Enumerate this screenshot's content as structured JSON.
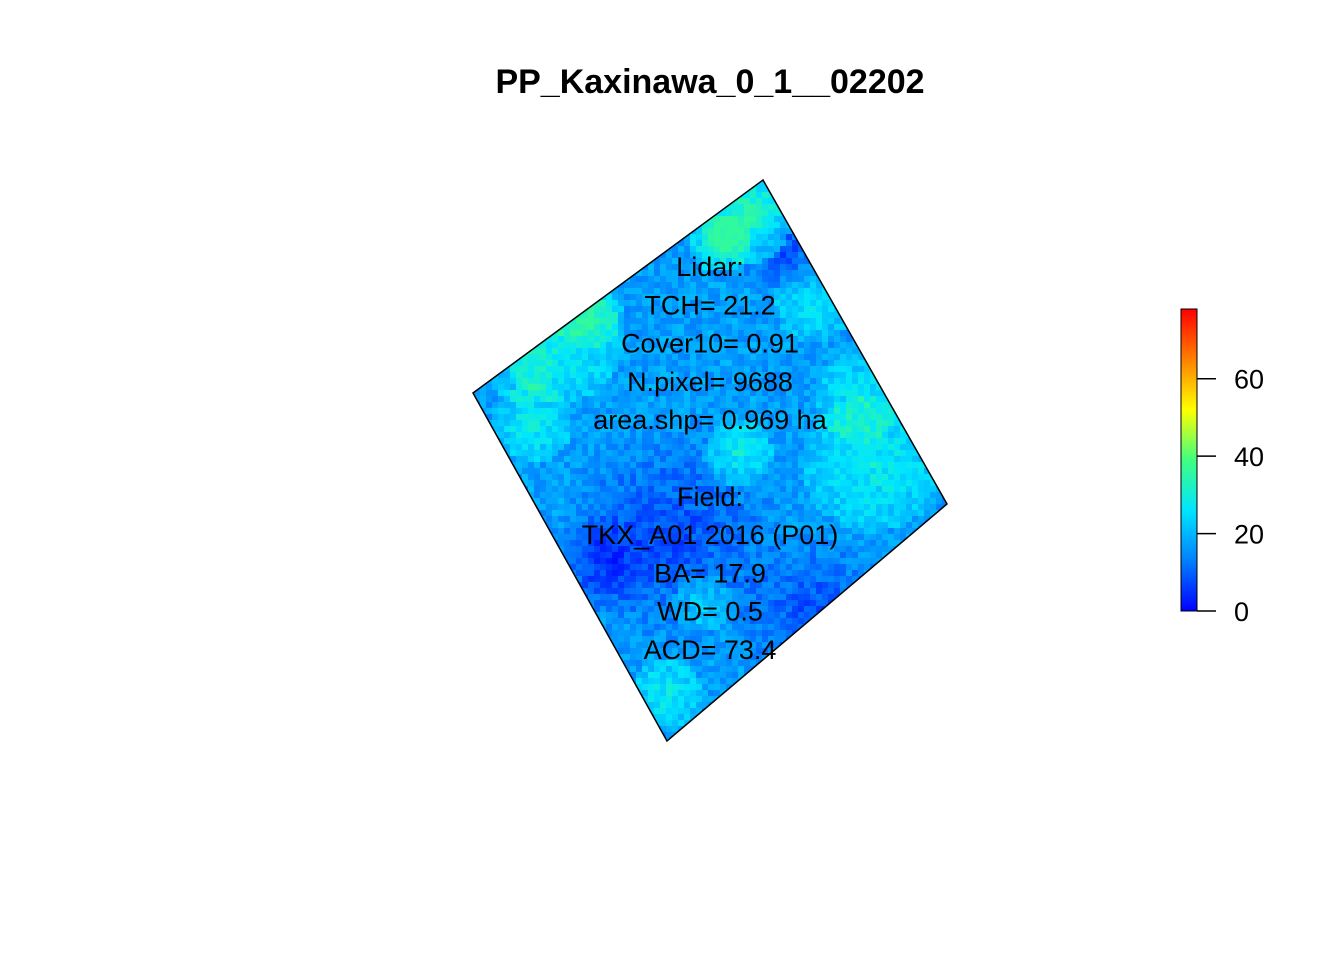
{
  "chart_data": {
    "type": "heatmap",
    "title": "PP_Kaxinawa_0_1__02202",
    "annotation_lines": [
      "Lidar:",
      "TCH= 21.2",
      "Cover10= 0.91",
      "N.pixel= 9688",
      "area.shp= 0.969 ha",
      "",
      "Field:",
      "TKX_A01 2016 (P01)",
      "BA= 17.9",
      "WD= 0.5",
      "ACD= 73.4"
    ],
    "colorbar": {
      "range": [
        0,
        78
      ],
      "ticks": [
        0,
        20,
        40,
        60
      ],
      "tick_labels": [
        "0",
        "20",
        "40",
        "60"
      ],
      "palette": [
        "#0000ff",
        "#0080ff",
        "#00e5ff",
        "#40ff80",
        "#ffff00",
        "#ff8000",
        "#ff0000"
      ]
    },
    "plot_polygon_corners": "rotated square",
    "legend_placement": "right",
    "grid": false
  }
}
